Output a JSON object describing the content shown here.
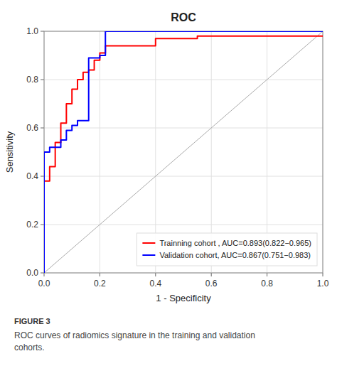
{
  "chart_data": {
    "type": "line",
    "title": "ROC",
    "xlabel": "1 - Specificity",
    "ylabel": "Sensitivity",
    "xlim": [
      0.0,
      1.0
    ],
    "ylim": [
      0.0,
      1.0
    ],
    "xticks": [
      {
        "value": 0.0,
        "label": "0.0"
      },
      0.2,
      0.4,
      0.6,
      0.8,
      {
        "value": 1.0,
        "label": "1.0"
      }
    ],
    "yticks": [
      {
        "value": 0.0,
        "label": "0.0"
      },
      0.2,
      0.4,
      0.6,
      0.8,
      {
        "value": 1.0,
        "label": "1.0"
      }
    ],
    "grid": true,
    "legend": "lower right",
    "annotations": [
      "FIGURE 3",
      "ROC curves of radiomics signature in the training and validation\ncohorts."
    ],
    "series": [
      {
        "name": "Trainning cohort , AUC=0.893(0.822−0.965)",
        "color": "#ff0000",
        "x": [
          0.0,
          0.0,
          0.02,
          0.02,
          0.04,
          0.04,
          0.06,
          0.06,
          0.08,
          0.08,
          0.1,
          0.1,
          0.12,
          0.12,
          0.14,
          0.14,
          0.16,
          0.16,
          0.18,
          0.18,
          0.2,
          0.2,
          0.22,
          0.22,
          0.4,
          0.4,
          0.55,
          0.55,
          1.0
        ],
        "values": [
          0.0,
          0.38,
          0.38,
          0.44,
          0.44,
          0.54,
          0.54,
          0.62,
          0.62,
          0.7,
          0.7,
          0.76,
          0.76,
          0.8,
          0.8,
          0.83,
          0.83,
          0.84,
          0.84,
          0.88,
          0.88,
          0.91,
          0.91,
          0.94,
          0.94,
          0.97,
          0.97,
          0.98,
          0.98
        ]
      },
      {
        "name": "Validation cohort, AUC=0.867(0.751−0.983)",
        "color": "#0000ff",
        "x": [
          0.0,
          0.0,
          0.02,
          0.02,
          0.06,
          0.06,
          0.08,
          0.08,
          0.1,
          0.1,
          0.12,
          0.12,
          0.16,
          0.16,
          0.2,
          0.2,
          0.22,
          0.22,
          0.55,
          0.55,
          1.0
        ],
        "values": [
          0.0,
          0.5,
          0.5,
          0.52,
          0.52,
          0.55,
          0.55,
          0.59,
          0.59,
          0.61,
          0.61,
          0.63,
          0.63,
          0.89,
          0.89,
          0.9,
          0.9,
          1.0,
          1.0,
          1.0,
          1.0
        ]
      }
    ]
  }
}
